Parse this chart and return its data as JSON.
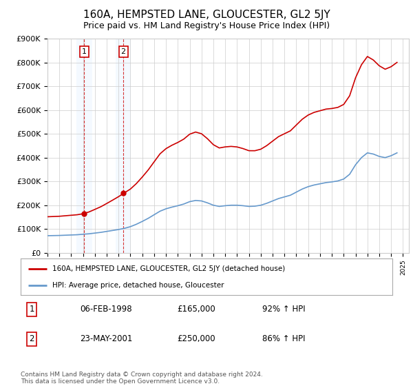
{
  "title": "160A, HEMPSTED LANE, GLOUCESTER, GL2 5JY",
  "subtitle": "Price paid vs. HM Land Registry's House Price Index (HPI)",
  "legend_property": "160A, HEMPSTED LANE, GLOUCESTER, GL2 5JY (detached house)",
  "legend_hpi": "HPI: Average price, detached house, Gloucester",
  "transactions": [
    {
      "label": "1",
      "date": "06-FEB-1998",
      "price": 165000,
      "hpi_pct": "92% ↑ HPI",
      "year": 1998.1
    },
    {
      "label": "2",
      "date": "23-MAY-2001",
      "price": 250000,
      "hpi_pct": "86% ↑ HPI",
      "year": 2001.4
    }
  ],
  "footer": "Contains HM Land Registry data © Crown copyright and database right 2024.\nThis data is licensed under the Open Government Licence v3.0.",
  "property_color": "#cc0000",
  "hpi_color": "#6699cc",
  "highlight_color": "#ddeeff",
  "grid_color": "#cccccc",
  "ylim": [
    0,
    900000
  ],
  "xlim_start": 1995,
  "xlim_end": 2025.5,
  "years": [
    1995,
    1995.5,
    1996,
    1996.5,
    1997,
    1997.5,
    1998,
    1998.5,
    1999,
    1999.5,
    2000,
    2000.5,
    2001,
    2001.5,
    2002,
    2002.5,
    2003,
    2003.5,
    2004,
    2004.5,
    2005,
    2005.5,
    2006,
    2006.5,
    2007,
    2007.5,
    2008,
    2008.5,
    2009,
    2009.5,
    2010,
    2010.5,
    2011,
    2011.5,
    2012,
    2012.5,
    2013,
    2013.5,
    2014,
    2014.5,
    2015,
    2015.5,
    2016,
    2016.5,
    2017,
    2017.5,
    2018,
    2018.5,
    2019,
    2019.5,
    2020,
    2020.5,
    2021,
    2021.5,
    2022,
    2022.5,
    2023,
    2023.5,
    2024,
    2024.5
  ],
  "hpi_values": [
    72000,
    72500,
    73000,
    74000,
    75000,
    76000,
    78000,
    80000,
    83000,
    86000,
    90000,
    94000,
    98000,
    103000,
    110000,
    120000,
    132000,
    145000,
    160000,
    175000,
    185000,
    192000,
    198000,
    205000,
    215000,
    220000,
    218000,
    210000,
    200000,
    195000,
    198000,
    200000,
    200000,
    198000,
    195000,
    196000,
    200000,
    208000,
    218000,
    228000,
    235000,
    242000,
    255000,
    268000,
    278000,
    285000,
    290000,
    295000,
    298000,
    302000,
    310000,
    330000,
    370000,
    400000,
    420000,
    415000,
    405000,
    400000,
    408000,
    420000
  ]
}
